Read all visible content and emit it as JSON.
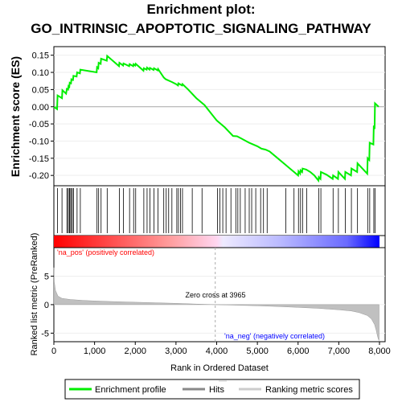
{
  "title_line1": "Enrichment plot:",
  "title_line2": "GO_INTRINSIC_APOPTOTIC_SIGNALING_PATHWAY",
  "colors": {
    "enrichment_line": "#00ee00",
    "hit_tick": "#000000",
    "zero_line": "#aaaaaa",
    "metric_fill": "#c0c0c0",
    "pos_text": "#ff0000",
    "neg_text": "#0000ff",
    "panel_border": "#000000"
  },
  "chart_data": {
    "type": "line",
    "n_genes": 8000,
    "x_ticks": [
      "0",
      "1,000",
      "2,000",
      "3,000",
      "4,000",
      "5,000",
      "6,000",
      "7,000",
      "8,000"
    ],
    "x_tick_values": [
      0,
      1000,
      2000,
      3000,
      4000,
      5000,
      6000,
      7000,
      8000
    ],
    "xlabel": "Rank in Ordered Dataset",
    "es_panel": {
      "ylabel": "Enrichment score (ES)",
      "ylim": [
        -0.23,
        0.175
      ],
      "y_ticks": [
        "0.15",
        "0.10",
        "0.05",
        "0.00",
        "-0.05",
        "-0.10",
        "-0.15",
        "-0.20"
      ],
      "y_tick_values": [
        0.15,
        0.1,
        0.05,
        0.0,
        -0.05,
        -0.1,
        -0.15,
        -0.2
      ],
      "series": {
        "x": [
          0,
          80,
          90,
          200,
          210,
          300,
          320,
          350,
          360,
          380,
          390,
          420,
          430,
          470,
          480,
          560,
          570,
          640,
          650,
          1050,
          1060,
          1090,
          1100,
          1150,
          1160,
          1300,
          1310,
          1600,
          1610,
          1700,
          1710,
          1850,
          1860,
          1950,
          1960,
          2000,
          2010,
          2200,
          2210,
          2280,
          2290,
          2350,
          2360,
          2450,
          2460,
          2550,
          2560,
          2700,
          2750,
          2900,
          3000,
          3050,
          3060,
          3150,
          3160,
          3300,
          3500,
          3700,
          3900,
          4000,
          4200,
          4400,
          4500,
          4600,
          4800,
          5000,
          5100,
          5200,
          5300,
          5500,
          5700,
          5800,
          5900,
          6000,
          6010,
          6050,
          6060,
          6100,
          6110,
          6200,
          6300,
          6400,
          6500,
          6510,
          6550,
          6560,
          6700,
          6850,
          6860,
          6980,
          6990,
          7150,
          7160,
          7300,
          7310,
          7450,
          7460,
          7700,
          7710,
          7750,
          7760,
          7850,
          7860,
          7880,
          7890,
          7980
        ],
        "y": [
          0.0,
          -0.007,
          0.033,
          0.025,
          0.048,
          0.038,
          0.052,
          0.05,
          0.06,
          0.058,
          0.07,
          0.068,
          0.08,
          0.078,
          0.09,
          0.088,
          0.1,
          0.097,
          0.108,
          0.1,
          0.115,
          0.112,
          0.128,
          0.125,
          0.14,
          0.134,
          0.148,
          0.118,
          0.128,
          0.12,
          0.126,
          0.118,
          0.124,
          0.118,
          0.124,
          0.12,
          0.125,
          0.105,
          0.112,
          0.108,
          0.114,
          0.108,
          0.113,
          0.107,
          0.112,
          0.106,
          0.11,
          0.085,
          0.08,
          0.072,
          0.066,
          0.062,
          0.068,
          0.062,
          0.066,
          0.05,
          0.025,
          0.005,
          -0.025,
          -0.04,
          -0.06,
          -0.085,
          -0.086,
          -0.092,
          -0.105,
          -0.115,
          -0.122,
          -0.125,
          -0.13,
          -0.15,
          -0.17,
          -0.18,
          -0.19,
          -0.2,
          -0.188,
          -0.195,
          -0.185,
          -0.19,
          -0.18,
          -0.183,
          -0.19,
          -0.2,
          -0.215,
          -0.205,
          -0.21,
          -0.19,
          -0.198,
          -0.21,
          -0.2,
          -0.21,
          -0.19,
          -0.21,
          -0.19,
          -0.2,
          -0.18,
          -0.19,
          -0.165,
          -0.195,
          -0.15,
          -0.155,
          -0.105,
          -0.11,
          -0.055,
          -0.065,
          0.01,
          0.0
        ]
      }
    },
    "metric_panel": {
      "ylabel": "Ranked list metric (PreRanked)",
      "ylim": [
        -6.5,
        10
      ],
      "y_ticks": [
        "5",
        "0",
        "-5"
      ],
      "y_tick_values": [
        5,
        0,
        -5
      ],
      "curve": {
        "rank": [
          0,
          10,
          40,
          100,
          200,
          400,
          700,
          1000,
          1500,
          2000,
          2500,
          3000,
          3500,
          3965,
          4500,
          5000,
          5500,
          6000,
          6500,
          7000,
          7300,
          7500,
          7700,
          7800,
          7880,
          7920,
          7950,
          7970,
          7990
        ],
        "value": [
          6.5,
          4.0,
          2.5,
          1.5,
          1.1,
          0.9,
          0.75,
          0.65,
          0.52,
          0.42,
          0.33,
          0.22,
          0.1,
          0.0,
          -0.1,
          -0.2,
          -0.32,
          -0.48,
          -0.65,
          -0.9,
          -1.1,
          -1.4,
          -1.9,
          -2.5,
          -3.5,
          -4.5,
          -5.5,
          -6.0,
          -6.3
        ]
      },
      "zero_cross_label": "Zero cross at 3965",
      "zero_cross": 3965,
      "pos_label": "'na_pos' (positively correlated)",
      "neg_label": "'na_neg' (negatively correlated)"
    },
    "hits": [
      90,
      200,
      320,
      350,
      380,
      390,
      420,
      430,
      470,
      480,
      570,
      650,
      1060,
      1100,
      1160,
      1310,
      1610,
      1710,
      1860,
      1960,
      2010,
      2210,
      2290,
      2360,
      2460,
      2560,
      2700,
      2760,
      2820,
      2900,
      3020,
      3060,
      3110,
      3160,
      3400,
      3640,
      4020,
      4080,
      4150,
      4230,
      4350,
      4470,
      4520,
      4580,
      4700,
      4800,
      4860,
      4960,
      5080,
      5150,
      5240,
      5700,
      5900,
      6010,
      6060,
      6110,
      6210,
      6510,
      6560,
      6860,
      6990,
      7160,
      7310,
      7460,
      7710,
      7760,
      7860,
      7890
    ],
    "legend": [
      "Enrichment profile",
      "Hits",
      "Ranking metric scores"
    ],
    "legend_position": "bottom"
  }
}
